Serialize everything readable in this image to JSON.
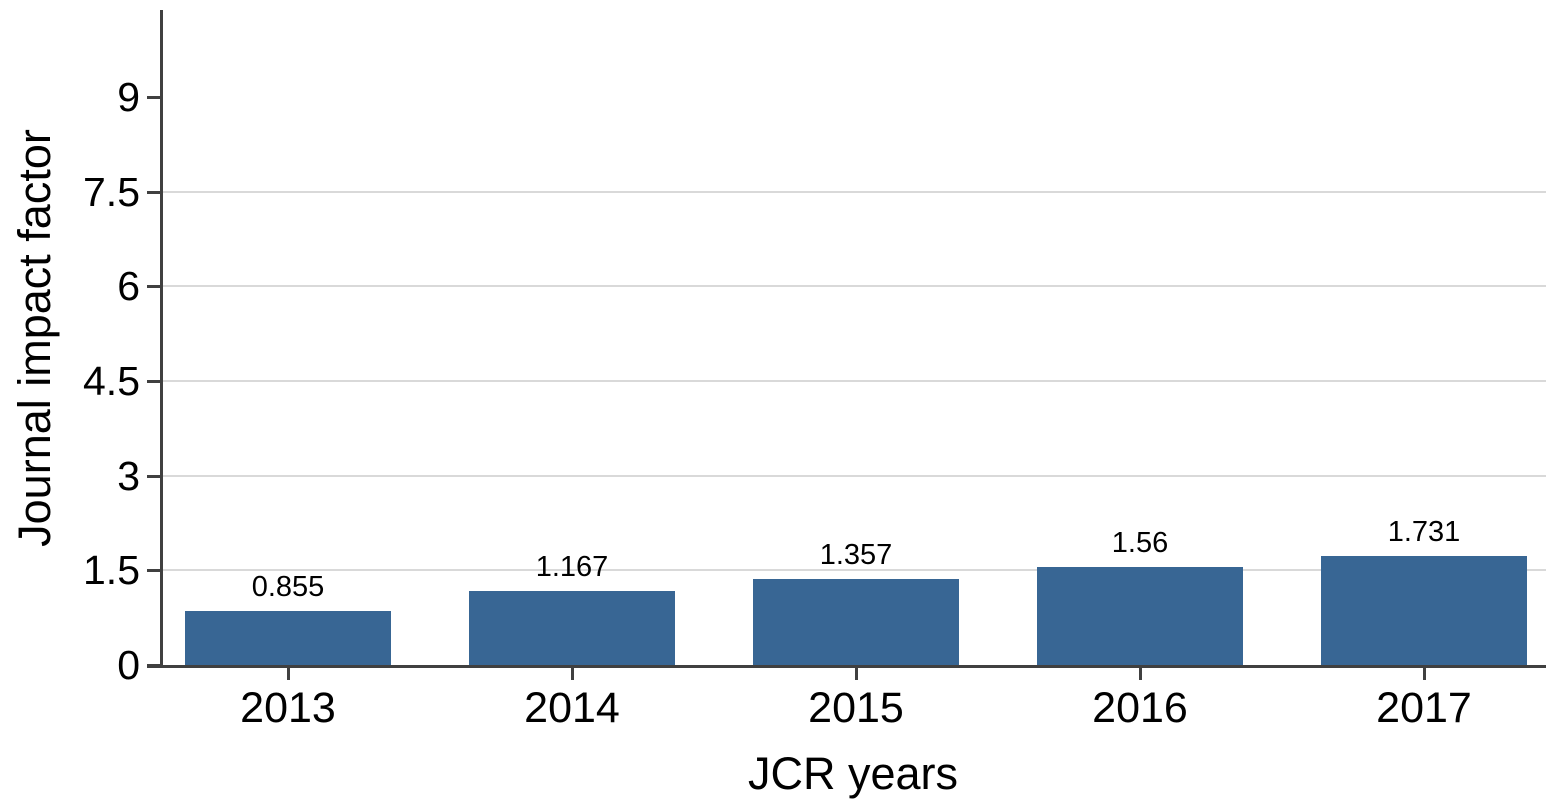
{
  "chart_data": {
    "type": "bar",
    "title": "",
    "xlabel": "JCR years",
    "ylabel": "Journal impact factor",
    "categories": [
      "2013",
      "2014",
      "2015",
      "2016",
      "2017"
    ],
    "values": [
      0.855,
      1.167,
      1.357,
      1.56,
      1.731
    ],
    "bar_labels": [
      "0.855",
      "1.167",
      "1.357",
      "1.56",
      "1.731"
    ],
    "yticks": [
      0,
      1.5,
      3,
      4.5,
      6,
      7.5,
      9
    ],
    "ytick_labels": [
      "0",
      "1.5",
      "3",
      "4.5",
      "6",
      "7.5",
      "9"
    ],
    "gridline_values": [
      1.5,
      3,
      4.5,
      6,
      7.5
    ],
    "ylim": [
      0,
      10.37
    ],
    "grid": "horizontal-only",
    "legend": "none",
    "bar_color": "#386694",
    "axis_color": "#404040",
    "grid_color": "#d9d9d9",
    "text_color": "#000000"
  }
}
